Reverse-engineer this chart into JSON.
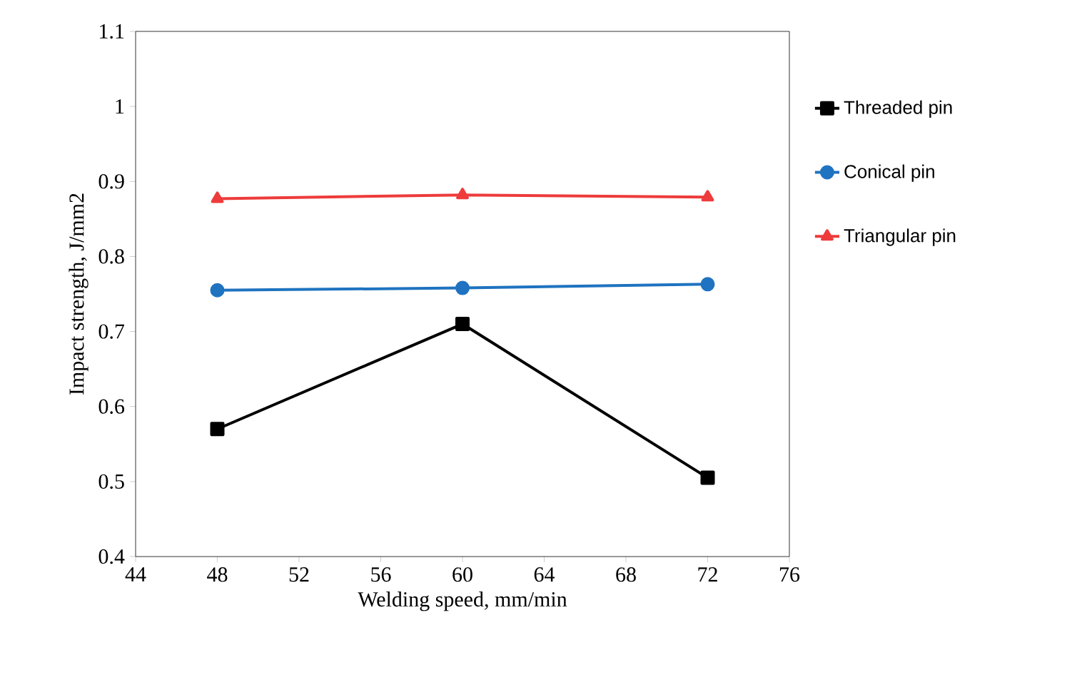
{
  "chart_data": {
    "type": "line",
    "xlabel": "Welding speed, mm/min",
    "ylabel": "Impact strength, J/mm2",
    "x": [
      48,
      60,
      72
    ],
    "series": [
      {
        "name": "Threaded pin",
        "color": "#000000",
        "marker": "square",
        "values": [
          0.57,
          0.71,
          0.505
        ]
      },
      {
        "name": "Conical pin",
        "color": "#1f73c0",
        "marker": "circle",
        "values": [
          0.755,
          0.758,
          0.763
        ]
      },
      {
        "name": "Triangular pin",
        "color": "#ee3b3b",
        "marker": "triangle",
        "values": [
          0.877,
          0.882,
          0.879
        ]
      }
    ],
    "xlim": [
      44,
      76
    ],
    "xticks": [
      44,
      48,
      52,
      56,
      60,
      64,
      68,
      72,
      76
    ],
    "ylim": [
      0.4,
      1.1
    ],
    "yticks": [
      0.4,
      0.5,
      0.6,
      0.7,
      0.8,
      0.9,
      1,
      1.1
    ],
    "grid": false,
    "legend": "right"
  }
}
